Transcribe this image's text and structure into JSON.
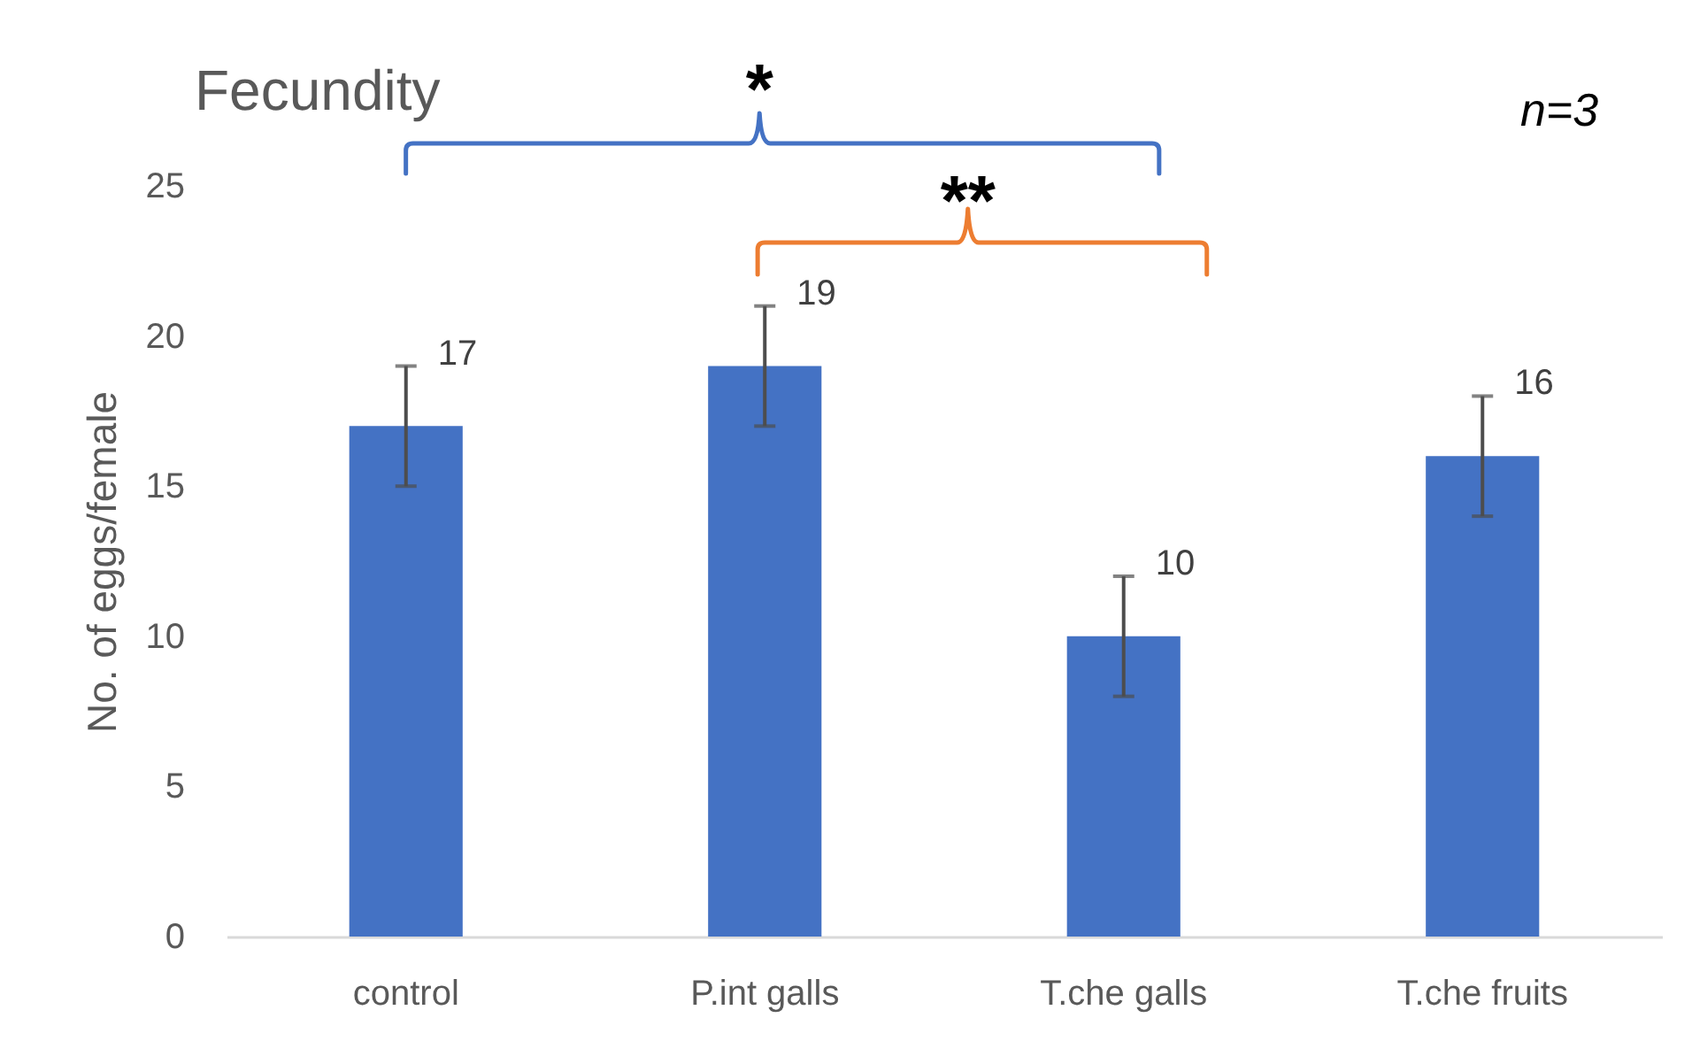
{
  "chart_data": {
    "type": "bar",
    "title": "Fecundity",
    "ylabel": "No. of eggs/female",
    "categories": [
      "control",
      "P.int galls",
      "T.che galls",
      "T.che fruits"
    ],
    "values": [
      17,
      19,
      10,
      16
    ],
    "color": "#4472c4",
    "errors": [
      2,
      2,
      2,
      2
    ],
    "data_labels": true,
    "ylim": [
      0,
      25
    ],
    "yticks": [
      0,
      5,
      10,
      15,
      20,
      25
    ],
    "grid": false,
    "annotations": [
      "*",
      "**",
      "n=3"
    ]
  }
}
